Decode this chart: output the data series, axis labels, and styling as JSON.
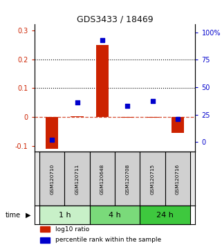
{
  "title": "GDS3433 / 18469",
  "samples": [
    "GSM120710",
    "GSM120711",
    "GSM120648",
    "GSM120708",
    "GSM120715",
    "GSM120716"
  ],
  "time_groups": [
    {
      "label": "1 h",
      "indices": [
        0,
        1
      ],
      "color": "#c8f0c8"
    },
    {
      "label": "4 h",
      "indices": [
        2,
        3
      ],
      "color": "#7ada7a"
    },
    {
      "label": "24 h",
      "indices": [
        4,
        5
      ],
      "color": "#3ec83e"
    }
  ],
  "log10_ratio": [
    -0.11,
    0.003,
    0.25,
    -0.002,
    -0.002,
    -0.055
  ],
  "percentile_rank_pct": [
    2.0,
    36.0,
    93.0,
    33.0,
    37.0,
    21.0
  ],
  "ylim_left": [
    -0.12,
    0.32
  ],
  "ylim_right": [
    -9.0,
    107.0
  ],
  "yticks_left": [
    -0.1,
    0.0,
    0.1,
    0.2,
    0.3
  ],
  "yticks_right": [
    0,
    25,
    50,
    75,
    100
  ],
  "ytick_labels_left": [
    "-0.1",
    "0",
    "0.1",
    "0.2",
    "0.3"
  ],
  "ytick_labels_right": [
    "0",
    "25",
    "50",
    "75",
    "100%"
  ],
  "hline_y_left": [
    0.1,
    0.2
  ],
  "bar_color": "#cc2200",
  "dot_color": "#0000cc",
  "zero_line_color": "#cc2200",
  "bar_width": 0.5,
  "legend_labels": [
    "log10 ratio",
    "percentile rank within the sample"
  ]
}
